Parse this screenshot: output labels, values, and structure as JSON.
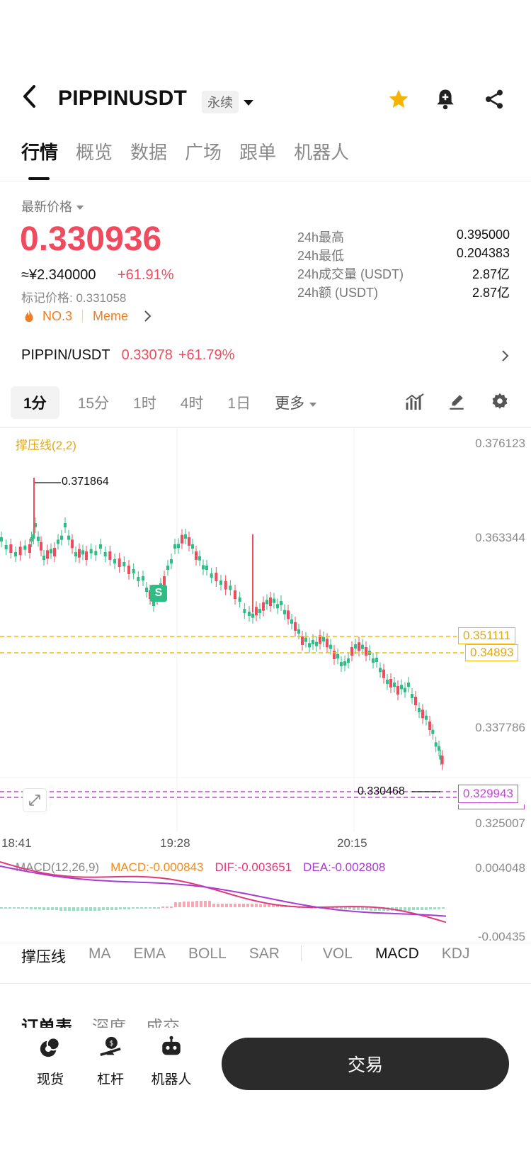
{
  "header": {
    "title": "PIPPINUSDT",
    "badge": "永续"
  },
  "tabs": [
    "行情",
    "概览",
    "数据",
    "广场",
    "跟单",
    "机器人"
  ],
  "price": {
    "label": "最新价格",
    "last": "0.330936",
    "cny": "≈¥2.340000",
    "change": "+61.91%",
    "mark": "标记价格: 0.331058",
    "rank": "NO.3",
    "tag": "Meme"
  },
  "stats": [
    {
      "label": "24h最高",
      "value": "0.395000"
    },
    {
      "label": "24h最低",
      "value": "0.204383"
    },
    {
      "label": "24h成交量 (USDT)",
      "value": "2.87亿"
    },
    {
      "label": "24h额 (USDT)",
      "value": "2.87亿"
    }
  ],
  "spot": {
    "pair": "PIPPIN/USDT",
    "price": "0.33078",
    "change": "+61.79%"
  },
  "timeframes": [
    "1分",
    "15分",
    "1时",
    "4时",
    "1日",
    "更多"
  ],
  "chart": {
    "indicator_label": "撑压线(2,2)",
    "y_labels": [
      "0.376123",
      "0.363344",
      "0.337786",
      "0.325007"
    ],
    "resistance_1": "0.351111",
    "resistance_2": "0.34893",
    "current_marker": "0.329943",
    "high_annotation": "0.371864",
    "low_annotation": "0.330468",
    "signal_badge": "S",
    "x_labels": [
      "18:41",
      "19:28",
      "20:15"
    ],
    "colors": {
      "up": "#ef4b5e",
      "down": "#2ebd85",
      "resistance": "#f0b90b",
      "current": "#c447d6"
    }
  },
  "chart_data": {
    "type": "candlestick",
    "ylim": [
      0.325007,
      0.376123
    ],
    "x": [
      "18:41",
      "19:28",
      "20:15"
    ],
    "annotations": {
      "high": 0.371864,
      "low": 0.330468,
      "resistance": [
        0.351111,
        0.34893
      ],
      "last": 0.329943
    }
  },
  "macd": {
    "title": "MACD(12,26,9)",
    "macd": "MACD:-0.000843",
    "dif": "DIF:-0.003651",
    "dea": "DEA:-0.002808",
    "top": "0.004048",
    "bottom": "-0.00435"
  },
  "indicators": [
    "撑压线",
    "MA",
    "EMA",
    "BOLL",
    "SAR",
    "VOL",
    "MACD",
    "KDJ"
  ],
  "sub_tabs_partial": [
    "订单表",
    "深度",
    "成交"
  ],
  "bottom_nav": [
    {
      "label": "现货",
      "icon": "spot-icon"
    },
    {
      "label": "杠杆",
      "icon": "leverage-icon"
    },
    {
      "label": "机器人",
      "icon": "robot-icon"
    }
  ],
  "trade_button": "交易"
}
